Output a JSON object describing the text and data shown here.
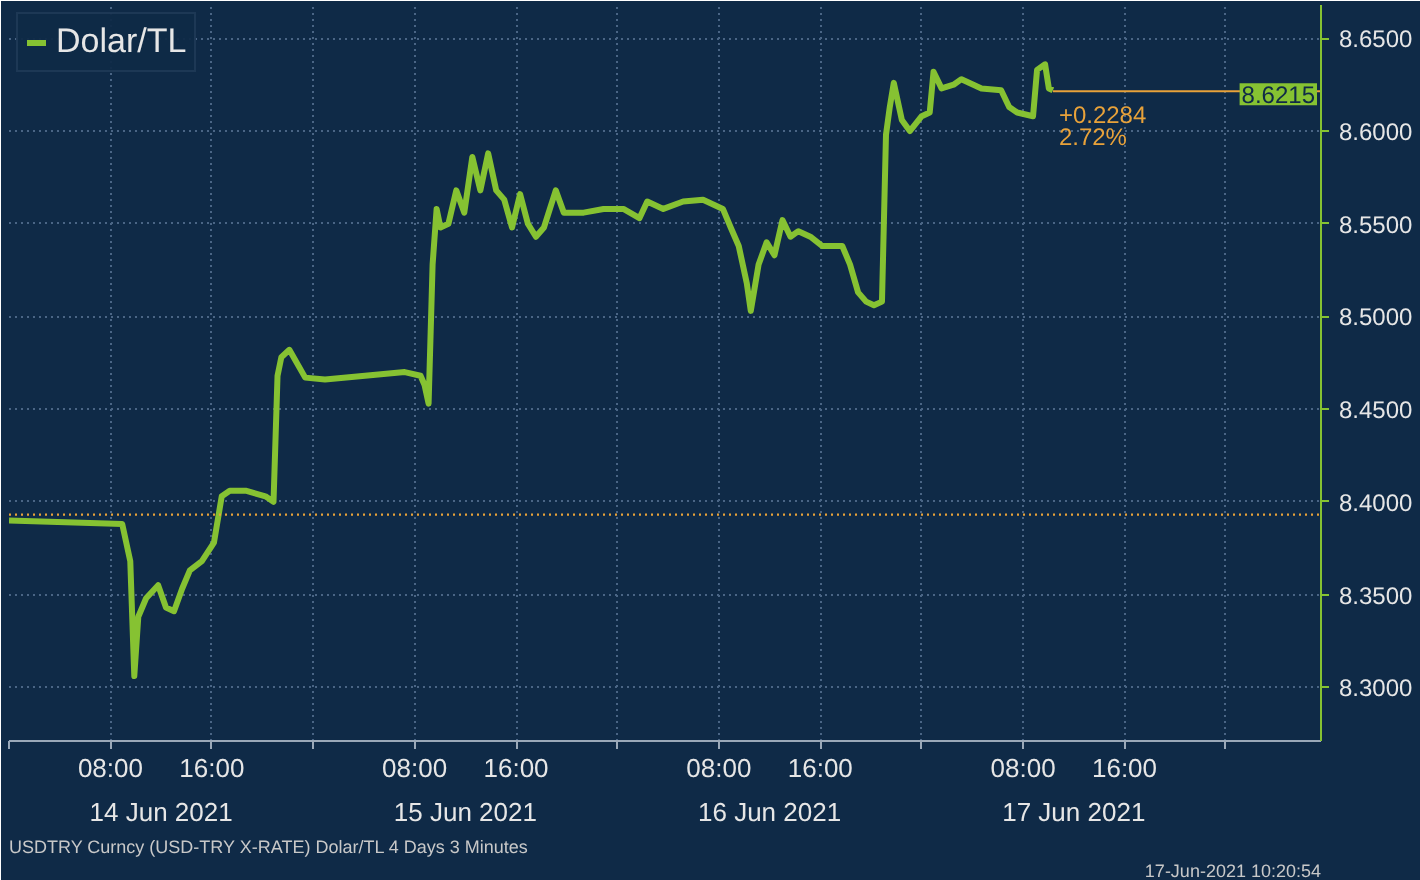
{
  "chart_data": {
    "type": "line",
    "legend": "top left",
    "grid": true,
    "line_style": "solid",
    "marker": "none",
    "series": [
      {
        "name": "Dolar/TL",
        "color": "#86c232",
        "x": [
          "2021-06-14T00:00",
          "2021-06-14T08:56",
          "2021-06-14T09:34",
          "2021-06-14T09:53",
          "2021-06-14T10:12",
          "2021-06-14T10:49",
          "2021-06-14T11:46",
          "2021-06-14T12:23",
          "2021-06-14T13:01",
          "2021-06-14T13:39",
          "2021-06-14T14:16",
          "2021-06-14T15:13",
          "2021-06-14T16:10",
          "2021-06-14T16:47",
          "2021-06-14T17:25",
          "2021-06-14T18:40",
          "2021-06-14T20:14",
          "2021-06-14T20:52",
          "2021-06-14T21:11",
          "2021-06-14T21:29",
          "2021-06-14T22:07",
          "2021-06-14T23:22",
          "2021-06-15T00:56",
          "2021-06-15T04:05",
          "2021-06-15T07:13",
          "2021-06-15T08:28",
          "2021-06-15T08:47",
          "2021-06-15T09:06",
          "2021-06-15T09:25",
          "2021-06-15T09:44",
          "2021-06-15T10:02",
          "2021-06-15T10:40",
          "2021-06-15T11:17",
          "2021-06-15T11:55",
          "2021-06-15T12:33",
          "2021-06-15T13:11",
          "2021-06-15T13:48",
          "2021-06-15T14:26",
          "2021-06-15T15:04",
          "2021-06-15T15:41",
          "2021-06-15T16:19",
          "2021-06-15T16:56",
          "2021-06-15T17:34",
          "2021-06-15T18:12",
          "2021-06-15T19:08",
          "2021-06-15T19:46",
          "2021-06-15T21:20",
          "2021-06-15T22:54",
          "2021-06-16T00:28",
          "2021-06-16T01:44",
          "2021-06-16T02:21",
          "2021-06-16T03:37",
          "2021-06-16T05:11",
          "2021-06-16T06:45",
          "2021-06-16T08:19",
          "2021-06-16T08:56",
          "2021-06-16T09:34",
          "2021-06-16T10:12",
          "2021-06-16T10:31",
          "2021-06-16T11:08",
          "2021-06-16T11:46",
          "2021-06-16T12:23",
          "2021-06-16T13:01",
          "2021-06-16T13:39",
          "2021-06-16T14:16",
          "2021-06-16T15:13",
          "2021-06-16T16:10",
          "2021-06-16T17:44",
          "2021-06-16T18:21",
          "2021-06-16T18:59",
          "2021-06-16T19:37",
          "2021-06-16T20:14",
          "2021-06-16T20:52",
          "2021-06-16T21:11",
          "2021-06-16T21:29",
          "2021-06-16T21:48",
          "2021-06-16T22:26",
          "2021-06-16T23:04",
          "2021-06-17T00:00",
          "2021-06-17T00:38",
          "2021-06-17T00:56",
          "2021-06-17T01:34",
          "2021-06-17T02:31",
          "2021-06-17T03:08",
          "2021-06-17T04:43",
          "2021-06-17T06:16",
          "2021-06-17T06:54",
          "2021-06-17T07:32",
          "2021-06-17T08:47",
          "2021-06-17T09:06",
          "2021-06-17T09:44",
          "2021-06-17T10:02",
          "2021-06-17T10:21"
        ],
        "values": [
          8.39,
          8.388,
          8.368,
          8.306,
          8.338,
          8.348,
          8.355,
          8.343,
          8.341,
          8.353,
          8.363,
          8.368,
          8.378,
          8.403,
          8.406,
          8.406,
          8.403,
          8.4,
          8.468,
          8.478,
          8.482,
          8.467,
          8.466,
          8.468,
          8.47,
          8.468,
          8.463,
          8.453,
          8.528,
          8.558,
          8.548,
          8.55,
          8.568,
          8.556,
          8.586,
          8.568,
          8.588,
          8.568,
          8.563,
          8.548,
          8.566,
          8.55,
          8.543,
          8.548,
          8.568,
          8.556,
          8.556,
          8.558,
          8.558,
          8.553,
          8.562,
          8.558,
          8.562,
          8.563,
          8.558,
          8.548,
          8.538,
          8.518,
          8.503,
          8.528,
          8.54,
          8.533,
          8.552,
          8.543,
          8.546,
          8.543,
          8.538,
          8.538,
          8.528,
          8.513,
          8.508,
          8.506,
          8.508,
          8.598,
          8.613,
          8.626,
          8.606,
          8.6,
          8.608,
          8.61,
          8.632,
          8.623,
          8.625,
          8.628,
          8.623,
          8.622,
          8.613,
          8.61,
          8.608,
          8.633,
          8.636,
          8.623,
          8.622
        ]
      }
    ],
    "xlim": [
      "2021-06-14T00:00",
      "2021-06-18T07:30"
    ],
    "ylim": [
      8.271,
      8.668
    ],
    "xticks": [
      {
        "value": "2021-06-14T00:00",
        "label": null
      },
      {
        "value": "2021-06-14T08:00",
        "label": "08:00"
      },
      {
        "value": "2021-06-14T16:00",
        "label": "16:00"
      },
      {
        "value": "2021-06-15T00:00",
        "label": null
      },
      {
        "value": "2021-06-15T08:00",
        "label": "08:00"
      },
      {
        "value": "2021-06-15T16:00",
        "label": "16:00"
      },
      {
        "value": "2021-06-16T00:00",
        "label": null
      },
      {
        "value": "2021-06-16T08:00",
        "label": "08:00"
      },
      {
        "value": "2021-06-16T16:00",
        "label": "16:00"
      },
      {
        "value": "2021-06-17T00:00",
        "label": null
      },
      {
        "value": "2021-06-17T08:00",
        "label": "08:00"
      },
      {
        "value": "2021-06-17T16:00",
        "label": "16:00"
      },
      {
        "value": "2021-06-18T00:00",
        "label": null
      }
    ],
    "yticks": [
      {
        "value": 8.3,
        "label": "8.3000"
      },
      {
        "value": 8.35,
        "label": "8.3500"
      },
      {
        "value": 8.4,
        "label": "8.4000"
      },
      {
        "value": 8.45,
        "label": "8.4500"
      },
      {
        "value": 8.5,
        "label": "8.5000"
      },
      {
        "value": 8.55,
        "label": "8.5500"
      },
      {
        "value": 8.6,
        "label": "8.6000"
      },
      {
        "value": 8.65,
        "label": "8.6500"
      }
    ],
    "ref_lines": [
      {
        "axis": "y",
        "value": 8.3931,
        "color": "#e8a23a",
        "line_style": "dotted"
      },
      {
        "axis": "y",
        "value": 8.6215,
        "label": "8.6215",
        "color": "#e8a23a",
        "line_style": "solid"
      }
    ],
    "annotations": [
      {
        "text": "+0.2284",
        "x": "2021-06-17T10:21",
        "y": 8.6215
      },
      {
        "text": "2.72%",
        "x": "2021-06-17T10:21",
        "y": 8.6215
      },
      "14 Jun 2021",
      "15 Jun 2021",
      "16 Jun 2021",
      "17 Jun 2021",
      "USDTRY Curncy (USD-TRY X-RATE) Dolar/TL 4 Days 3 Minutes",
      "17-Jun-2021 10:20:54"
    ]
  }
}
